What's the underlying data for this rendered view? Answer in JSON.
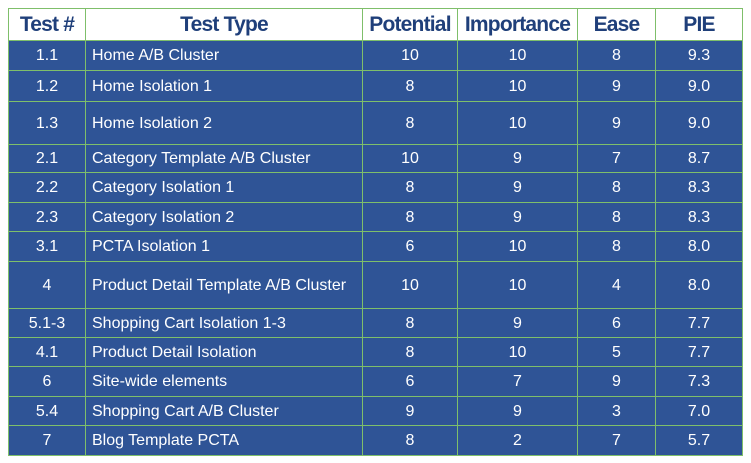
{
  "table": {
    "header": [
      "Test #",
      "Test Type",
      "Potential",
      "Importance",
      "Ease",
      "PIE"
    ],
    "rows": [
      [
        "1.1",
        "Home A/B Cluster",
        "10",
        "10",
        "8",
        "9.3"
      ],
      [
        "1.2",
        "Home Isolation 1",
        "8",
        "10",
        "9",
        "9.0"
      ],
      [
        "1.3",
        "Home Isolation 2",
        "8",
        "10",
        "9",
        "9.0"
      ],
      [
        "2.1",
        "Category Template A/B Cluster",
        "10",
        "9",
        "7",
        "8.7"
      ],
      [
        "2.2",
        "Category Isolation 1",
        "8",
        "9",
        "8",
        "8.3"
      ],
      [
        "2.3",
        "Category Isolation 2",
        "8",
        "9",
        "8",
        "8.3"
      ],
      [
        "3.1",
        "PCTA Isolation 1",
        "6",
        "10",
        "8",
        "8.0"
      ],
      [
        "4",
        "Product Detail Template A/B Cluster",
        "10",
        "10",
        "4",
        "8.0"
      ],
      [
        "5.1-3",
        "Shopping Cart Isolation 1-3",
        "8",
        "9",
        "6",
        "7.7"
      ],
      [
        "4.1",
        "Product Detail Isolation",
        "8",
        "10",
        "5",
        "7.7"
      ],
      [
        "6",
        "Site-wide elements",
        "6",
        "7",
        "9",
        "7.3"
      ],
      [
        "5.4",
        "Shopping Cart A/B Cluster",
        "9",
        "9",
        "3",
        "7.0"
      ],
      [
        "7",
        "Blog Template PCTA",
        "8",
        "2",
        "7",
        "5.7"
      ]
    ]
  }
}
